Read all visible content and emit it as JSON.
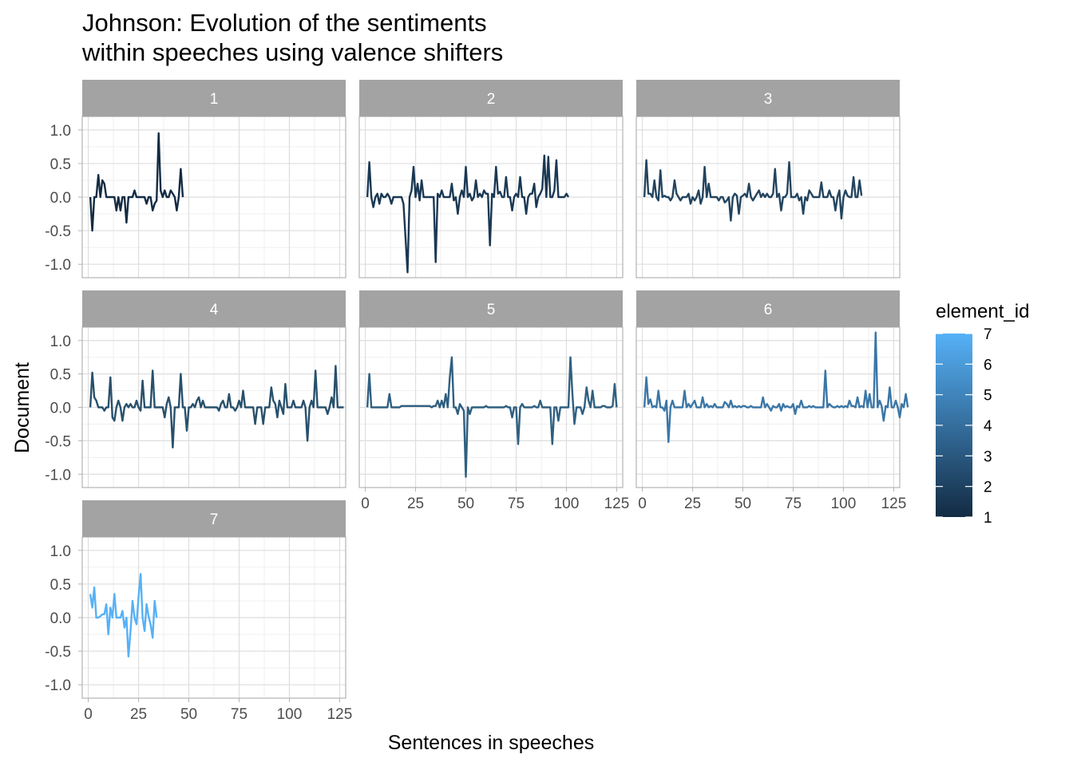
{
  "chart_data": {
    "type": "line",
    "title": [
      "Johnson: Evolution of the sentiments",
      "within speeches using valence shifters"
    ],
    "xlabel": "Sentences in speeches",
    "ylabel": "Document",
    "xlim": [
      -3,
      128
    ],
    "ylim": [
      -1.2,
      1.2
    ],
    "x_ticks": [
      "0",
      "25",
      "50",
      "75",
      "100",
      "125"
    ],
    "x_tick_values": [
      0,
      25,
      50,
      75,
      100,
      125
    ],
    "y_ticks": [
      "1.0",
      "0.5",
      "0.0",
      "-0.5",
      "-1.0"
    ],
    "y_tick_values": [
      1.0,
      0.5,
      0.0,
      -0.5,
      -1.0
    ],
    "grid": true,
    "facet_layout": "3 columns, 3 rows",
    "legend": {
      "title": "element_id",
      "position": "right",
      "type": "colorbar",
      "labels": [
        "7",
        "6",
        "5",
        "4",
        "3",
        "2",
        "1"
      ],
      "low_color": "#132B43",
      "high_color": "#56B1F7"
    },
    "colors": {
      "strip_bg": "#A3A3A3",
      "strip_text": "#FFFFFF",
      "grid_major": "#DEDEDE",
      "grid_minor": "#EFEFEF",
      "panel_border": "#B3B3B3"
    },
    "series": [
      {
        "name": "1",
        "color": "#132B43",
        "y": [
          0,
          -0.5,
          0,
          0,
          0.33,
          0,
          0.25,
          0.2,
          0,
          0,
          0,
          0,
          0,
          -0.2,
          0,
          -0.2,
          0,
          0,
          -0.38,
          0,
          0,
          0,
          0.1,
          0,
          0,
          0,
          0,
          0,
          -0.1,
          0,
          0,
          -0.2,
          -0.1,
          -0.05,
          0.95,
          0.1,
          0,
          0.1,
          0,
          0,
          0.1,
          0.05,
          0,
          -0.2,
          0,
          0.42,
          0
        ]
      },
      {
        "name": "2",
        "color": "#1A3853",
        "y": [
          0,
          0.52,
          0,
          -0.15,
          0,
          0.05,
          -0.1,
          0.05,
          0,
          0,
          0.05,
          0,
          -0.1,
          0,
          0,
          0,
          0,
          0,
          -0.1,
          -0.6,
          -1.12,
          0,
          0.1,
          0.45,
          0,
          0.2,
          -0.05,
          0.25,
          0,
          0,
          0,
          0,
          0,
          0,
          -0.97,
          0.05,
          0,
          0.1,
          0,
          0,
          0,
          0,
          0.2,
          -0.05,
          0,
          -0.25,
          0,
          0.1,
          0,
          0.45,
          0,
          0.05,
          -0.05,
          0,
          0.25,
          0,
          0.05,
          0,
          0.1,
          0.05,
          0.05,
          -0.72,
          0.05,
          0,
          0.45,
          0.05,
          0.08,
          0,
          0,
          0.3,
          0,
          0,
          -0.2,
          0,
          0.05,
          0,
          0.3,
          0,
          0,
          -0.25,
          0,
          0.05,
          0.05,
          0.2,
          -0.15,
          0,
          0.05,
          0.12,
          0.62,
          0,
          0.6,
          0,
          0,
          0.1,
          0.55,
          0,
          0,
          0,
          0,
          0.05,
          0
        ]
      },
      {
        "name": "3",
        "color": "#22445F",
        "y": [
          0,
          0.55,
          0.05,
          0.05,
          0,
          0.25,
          0,
          -0.05,
          0.4,
          0,
          0.02,
          0,
          0,
          -0.05,
          0,
          0.25,
          0.05,
          0,
          -0.05,
          0,
          0,
          0,
          0.05,
          -0.1,
          0,
          -0.05,
          0,
          0.1,
          -0.1,
          0,
          0.45,
          0,
          0.2,
          0,
          0,
          0,
          0,
          -0.05,
          0,
          0,
          -0.08,
          -0.05,
          0,
          -0.35,
          0,
          0.05,
          0.02,
          -0.25,
          0,
          0.02,
          0.05,
          0,
          0.2,
          0,
          -0.05,
          0,
          0.05,
          0.1,
          0,
          0.05,
          0,
          0.05,
          0,
          0,
          0.05,
          0.42,
          0,
          0.05,
          -0.2,
          0,
          0,
          0.05,
          0.52,
          0,
          0,
          0,
          0.05,
          -0.05,
          0,
          -0.25,
          0,
          -0.05,
          0.1,
          0.05,
          0,
          0,
          0,
          0,
          0.22,
          0,
          0,
          0,
          0.1,
          0,
          0,
          -0.2,
          0,
          0.1,
          -0.32,
          0,
          0.1,
          0.02,
          0,
          0,
          0.3,
          0,
          0,
          0.25,
          0.02
        ]
      },
      {
        "name": "4",
        "color": "#28506C",
        "y": [
          0,
          0.52,
          0.15,
          0.1,
          0,
          0,
          0,
          -0.05,
          0,
          0,
          0.45,
          -0.15,
          -0.2,
          0,
          0.1,
          0,
          -0.2,
          0,
          0.05,
          0,
          0.05,
          0,
          0,
          0.1,
          0,
          -0.05,
          0.4,
          0,
          0,
          0,
          0,
          0.55,
          0,
          0,
          0,
          0,
          0,
          -0.15,
          0.05,
          0.15,
          0,
          -0.6,
          0,
          0,
          0,
          0.5,
          0,
          0,
          -0.35,
          0,
          0,
          0.05,
          0,
          0.1,
          0.15,
          0,
          0.1,
          0,
          0,
          0,
          0,
          0,
          0,
          0,
          -0.05,
          0.05,
          0.1,
          0,
          0,
          0.2,
          0,
          0,
          -0.05,
          0,
          0.1,
          0,
          0.25,
          0,
          0,
          0,
          0,
          0,
          -0.25,
          0,
          0,
          0,
          -0.25,
          0,
          0,
          0,
          0.3,
          0.1,
          0.05,
          -0.15,
          0.1,
          0,
          -0.1,
          0.35,
          0,
          0,
          0,
          0.1,
          0,
          0,
          0,
          0,
          0.1,
          0,
          -0.5,
          0,
          0.1,
          0,
          0.55,
          0,
          0,
          0,
          0,
          0,
          -0.1,
          0,
          0.15,
          0,
          0.62,
          0,
          0,
          0,
          0
        ]
      },
      {
        "name": "5",
        "color": "#2F5F80",
        "y": [
          0,
          0.5,
          0,
          0,
          0,
          0,
          0,
          0,
          0,
          0,
          0,
          0.2,
          0,
          0,
          0,
          0,
          0,
          0.02,
          0.02,
          0.02,
          0.02,
          0.02,
          0.02,
          0.02,
          0.02,
          0.02,
          0.02,
          0.02,
          0.02,
          0.02,
          0.02,
          0.02,
          0,
          0.02,
          0.02,
          0.1,
          0,
          0.1,
          0,
          0.2,
          0,
          0.45,
          0.75,
          0,
          0,
          -0.1,
          0.05,
          0,
          -0.05,
          -1.04,
          0,
          -0.1,
          0,
          0,
          0,
          0,
          0,
          0,
          0,
          0.02,
          0,
          0,
          0,
          0,
          0,
          0,
          0,
          0,
          0,
          0.02,
          0,
          0,
          -0.15,
          0,
          0,
          -0.55,
          0,
          0.05,
          0,
          0,
          0,
          0,
          0,
          0.02,
          0,
          0,
          0.1,
          0,
          0,
          0,
          0,
          0,
          -0.55,
          0,
          0,
          -0.2,
          0,
          0,
          0,
          0,
          0,
          0.75,
          0.2,
          -0.25,
          0,
          0,
          0,
          -0.1,
          0,
          0.3,
          0.1,
          0,
          0.25,
          0,
          0,
          0,
          0,
          0.02,
          0.02,
          0,
          0,
          0,
          0.02,
          0.35,
          0
        ]
      },
      {
        "name": "6",
        "color": "#3B76A6",
        "y": [
          0,
          0.45,
          0.05,
          0.12,
          0,
          0.02,
          0,
          0.25,
          0,
          0,
          -0.05,
          0.1,
          -0.52,
          0,
          0.1,
          0,
          0,
          0,
          0,
          0,
          0.25,
          0,
          0.05,
          0,
          0.05,
          0.1,
          0,
          0,
          0,
          0.15,
          0,
          0.05,
          0,
          0.02,
          0,
          0.05,
          0,
          0,
          0,
          0,
          0.08,
          0.05,
          0,
          0.1,
          0,
          0.02,
          0,
          0.02,
          0,
          0.02,
          0.02,
          0,
          0,
          0.02,
          0,
          0,
          0,
          0,
          0,
          0.15,
          0,
          0.05,
          0,
          -0.05,
          0.02,
          0,
          0,
          0.05,
          -0.05,
          0.05,
          0,
          0.02,
          0,
          0,
          0.05,
          -0.1,
          0.02,
          0,
          0.1,
          0,
          0,
          0,
          0.02,
          0,
          0.02,
          0,
          0,
          0,
          0,
          0,
          0.55,
          0,
          0.05,
          0.02,
          0,
          0,
          0.02,
          0,
          0.02,
          0,
          0.02,
          0,
          0.1,
          0.02,
          0.02,
          0,
          0.15,
          0,
          0.02,
          0,
          0.25,
          0,
          0.2,
          0,
          0,
          1.12,
          0,
          0.1,
          0.02,
          -0.2,
          0.02,
          0,
          0.3,
          0,
          0,
          0.1,
          0,
          -0.15,
          0.05,
          0,
          0.2,
          0
        ]
      },
      {
        "name": "7",
        "color": "#56B1F7",
        "y": [
          0.35,
          0.15,
          0.45,
          0,
          0,
          0.02,
          0.05,
          0.05,
          0.2,
          -0.25,
          0.15,
          0,
          0.35,
          0,
          0,
          0,
          0.1,
          -0.15,
          0,
          -0.58,
          -0.2,
          0.25,
          0,
          -0.1,
          0.3,
          0.65,
          0,
          -0.2,
          0.2,
          0.02,
          -0.1,
          -0.3,
          0.25,
          0
        ]
      }
    ]
  }
}
